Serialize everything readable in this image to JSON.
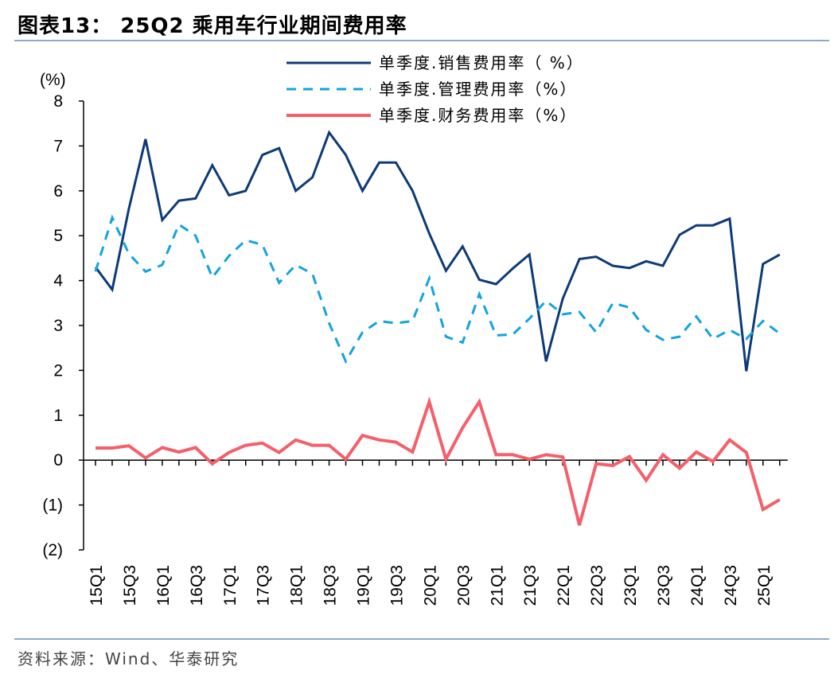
{
  "header": {
    "title": "图表13：  25Q2 乘用车行业期间费用率"
  },
  "footer": {
    "source": "资料来源：Wind、华泰研究"
  },
  "chart_data": {
    "type": "line",
    "ylabel": "(%)",
    "ylim": [
      -2,
      8
    ],
    "yticks": [
      8,
      7,
      6,
      5,
      4,
      3,
      2,
      1,
      0,
      -1,
      -2
    ],
    "ytick_labels": [
      "8",
      "7",
      "6",
      "5",
      "4",
      "3",
      "2",
      "1",
      "0",
      "(1)",
      "(2)"
    ],
    "x": [
      "15Q1",
      "15Q2",
      "15Q3",
      "15Q4",
      "16Q1",
      "16Q2",
      "16Q3",
      "16Q4",
      "17Q1",
      "17Q2",
      "17Q3",
      "17Q4",
      "18Q1",
      "18Q2",
      "18Q3",
      "18Q4",
      "19Q1",
      "19Q2",
      "19Q3",
      "19Q4",
      "20Q1",
      "20Q2",
      "20Q3",
      "20Q4",
      "21Q1",
      "21Q2",
      "21Q3",
      "21Q4",
      "22Q1",
      "22Q2",
      "22Q3",
      "22Q4",
      "23Q1",
      "23Q2",
      "23Q3",
      "23Q4",
      "24Q1",
      "24Q2",
      "24Q3",
      "24Q4",
      "25Q1",
      "25Q2"
    ],
    "xtick_labels": [
      "15Q1",
      "15Q3",
      "16Q1",
      "16Q3",
      "17Q1",
      "17Q3",
      "18Q1",
      "18Q3",
      "19Q1",
      "19Q3",
      "20Q1",
      "20Q3",
      "21Q1",
      "21Q3",
      "22Q1",
      "22Q3",
      "23Q1",
      "23Q3",
      "24Q1",
      "24Q3",
      "25Q1"
    ],
    "legend_position": "top-right",
    "grid": false,
    "series": [
      {
        "name": "单季度.销售费用率（ %）",
        "color": "#0d3a78",
        "style": "solid",
        "values": [
          4.3,
          3.8,
          5.6,
          7.15,
          5.35,
          5.78,
          5.83,
          6.57,
          5.9,
          6.0,
          6.8,
          6.95,
          6.0,
          6.3,
          7.3,
          6.8,
          6.0,
          6.63,
          6.63,
          6.0,
          5.05,
          4.22,
          4.76,
          4.02,
          3.92,
          4.27,
          4.58,
          2.2,
          3.6,
          4.48,
          4.53,
          4.33,
          4.28,
          4.43,
          4.33,
          5.02,
          5.23,
          5.23,
          5.38,
          1.98,
          4.37,
          4.58
        ]
      },
      {
        "name": "单季度.管理费用率（%）",
        "color": "#12a3e0",
        "style": "dashed",
        "values": [
          4.2,
          5.4,
          4.6,
          4.2,
          4.35,
          5.25,
          5.0,
          4.07,
          4.55,
          4.9,
          4.8,
          3.95,
          4.35,
          4.15,
          3.05,
          2.2,
          2.85,
          3.1,
          3.05,
          3.1,
          4.05,
          2.75,
          2.62,
          3.7,
          2.78,
          2.8,
          3.15,
          3.55,
          3.25,
          3.3,
          2.85,
          3.5,
          3.4,
          2.9,
          2.68,
          2.75,
          3.2,
          2.7,
          2.9,
          2.7,
          3.1,
          2.82
        ]
      },
      {
        "name": "单季度.财务费用率（%）",
        "color": "#f45f6a",
        "style": "solid",
        "values": [
          0.27,
          0.27,
          0.32,
          0.05,
          0.28,
          0.18,
          0.28,
          -0.08,
          0.17,
          0.33,
          0.38,
          0.17,
          0.45,
          0.33,
          0.33,
          0.02,
          0.55,
          0.45,
          0.4,
          0.18,
          1.3,
          0.02,
          0.72,
          1.3,
          0.12,
          0.12,
          0.02,
          0.12,
          0.07,
          -1.45,
          -0.08,
          -0.12,
          0.08,
          -0.45,
          0.12,
          -0.18,
          0.18,
          -0.03,
          0.45,
          0.17,
          -1.1,
          -0.88
        ]
      }
    ]
  }
}
